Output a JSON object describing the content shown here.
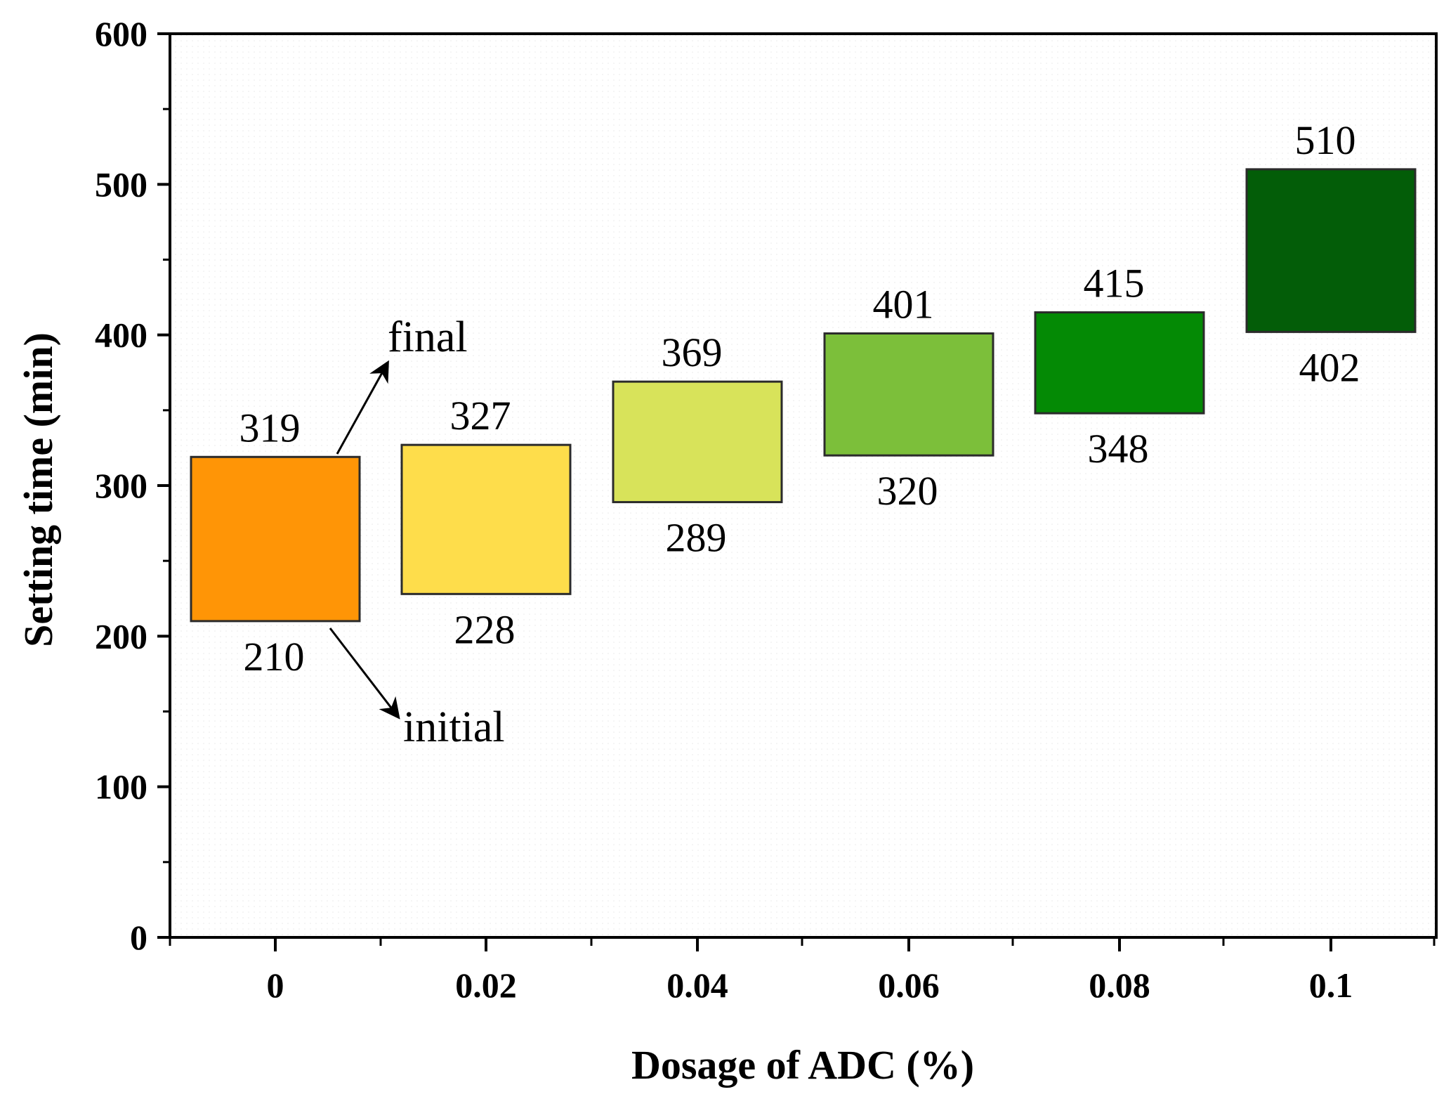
{
  "chart_data": {
    "type": "floating-bar",
    "title": "",
    "xlabel": "Dosage of ADC (%)",
    "ylabel": "Setting time (min)",
    "ylim": [
      0,
      600
    ],
    "y_ticks": [
      0,
      100,
      200,
      300,
      400,
      500,
      600
    ],
    "categories": [
      "0",
      "0.02",
      "0.04",
      "0.06",
      "0.08",
      "0.1"
    ],
    "series": [
      {
        "name": "initial",
        "values": [
          210,
          228,
          289,
          320,
          348,
          402
        ]
      },
      {
        "name": "final",
        "values": [
          319,
          327,
          369,
          401,
          415,
          510
        ]
      }
    ],
    "top_labels": [
      "319",
      "327",
      "369",
      "401",
      "415",
      "510"
    ],
    "bottom_labels": [
      "210",
      "228",
      "289",
      "320",
      "348",
      "402"
    ],
    "colors": [
      "#ff9506",
      "#fedd4b",
      "#d8e35a",
      "#7cbf3a",
      "#048a05",
      "#035d08"
    ],
    "annotations": {
      "final": "final",
      "initial": "initial"
    },
    "grid": false
  }
}
